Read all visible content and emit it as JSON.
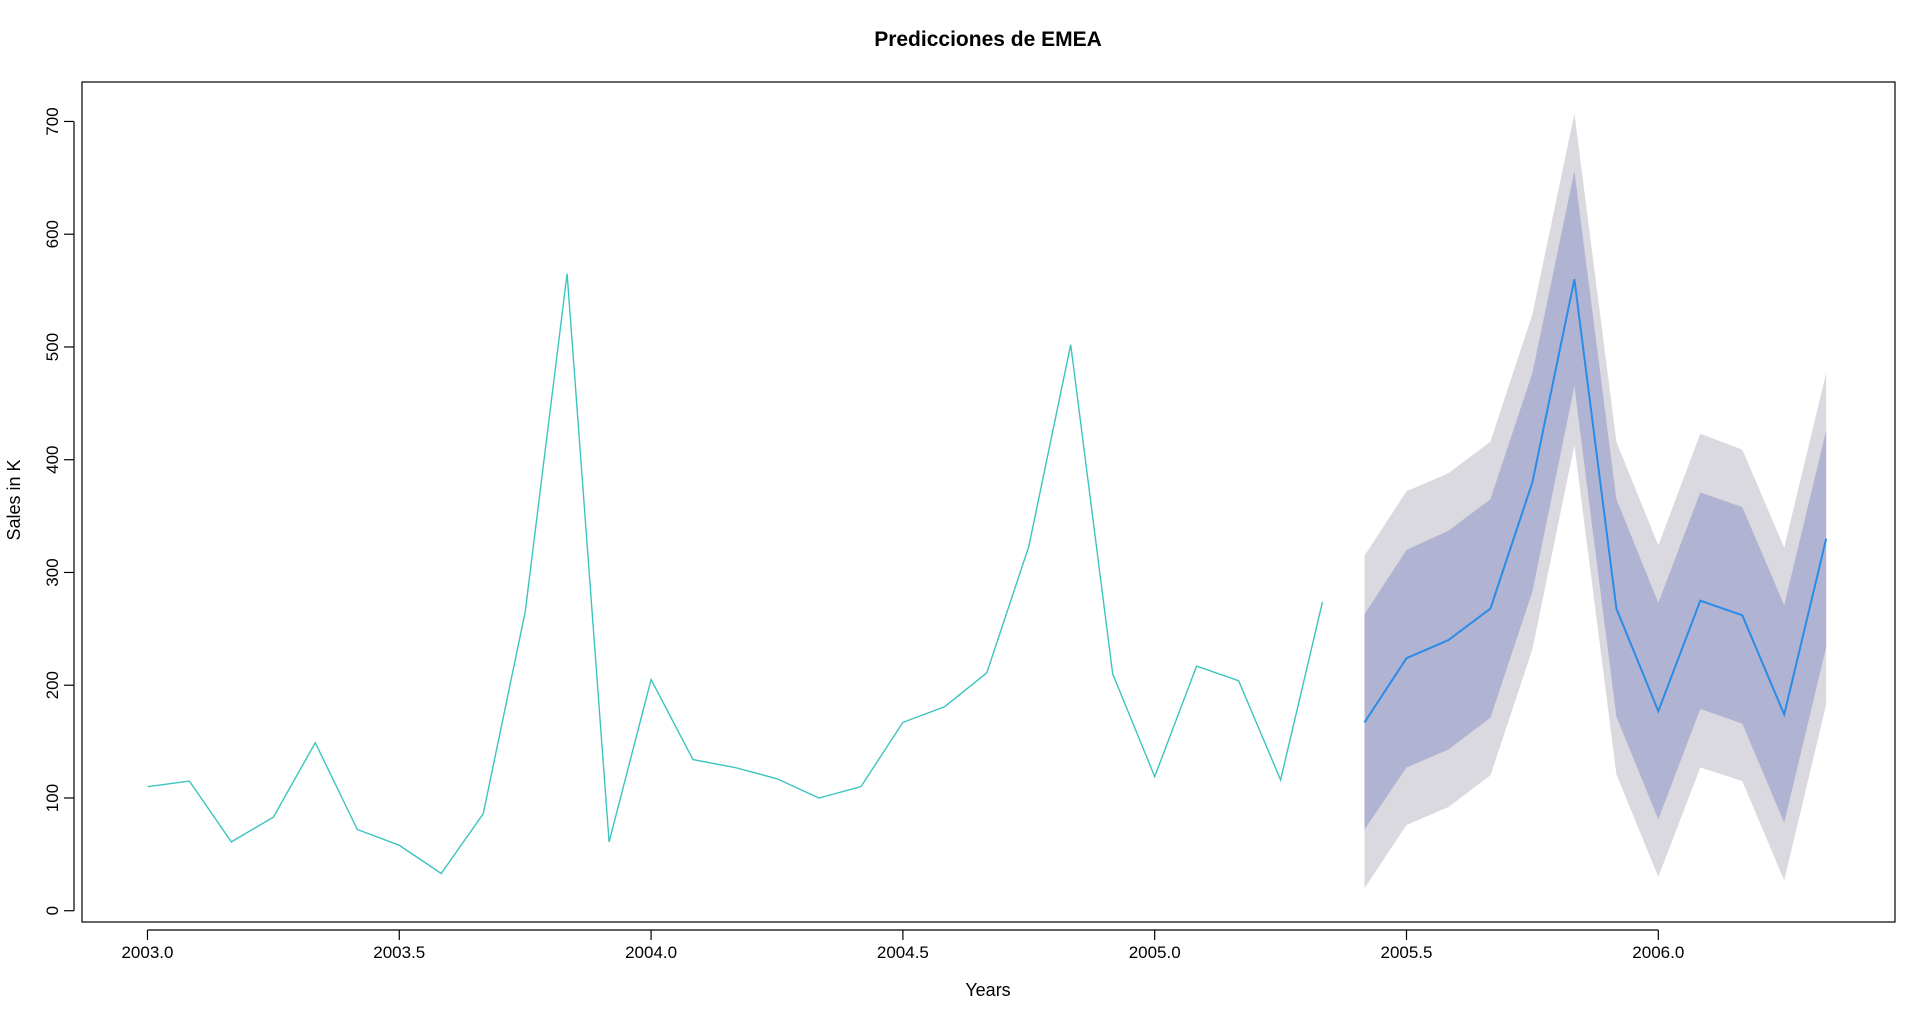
{
  "chart_data": {
    "type": "line",
    "title": "Predicciones de EMEA",
    "xlabel": "Years",
    "ylabel": "Sales in K",
    "xlim": [
      2002.87,
      2006.47
    ],
    "ylim": [
      -10,
      735
    ],
    "x_ticks": [
      2003.0,
      2003.5,
      2004.0,
      2004.5,
      2005.0,
      2005.5,
      2006.0
    ],
    "x_tick_labels": [
      "2003.0",
      "2003.5",
      "2004.0",
      "2004.5",
      "2005.0",
      "2005.5",
      "2006.0"
    ],
    "y_ticks": [
      0,
      100,
      200,
      300,
      400,
      500,
      600,
      700
    ],
    "y_tick_labels": [
      "0",
      "100",
      "200",
      "300",
      "400",
      "500",
      "600",
      "700"
    ],
    "grid": false,
    "colors": {
      "historical": "#3CC4BF",
      "forecast": "#2A8CE6",
      "band_80": "#B0B4D2",
      "band_95": "#D9D9DF"
    },
    "historical": {
      "x": [
        2003.0,
        2003.0833,
        2003.1667,
        2003.25,
        2003.3333,
        2003.4167,
        2003.5,
        2003.5833,
        2003.6667,
        2003.75,
        2003.8333,
        2003.9167,
        2004.0,
        2004.0833,
        2004.1667,
        2004.25,
        2004.3333,
        2004.4167,
        2004.5,
        2004.5833,
        2004.6667,
        2004.75,
        2004.8333,
        2004.9167,
        2005.0,
        2005.0833,
        2005.1667,
        2005.25,
        2005.3333
      ],
      "y": [
        110,
        115,
        61,
        83,
        149,
        72,
        58,
        33,
        86,
        265,
        565,
        61,
        205,
        134,
        127,
        117,
        100,
        110,
        167,
        181,
        211,
        323,
        502,
        210,
        119,
        217,
        204,
        116,
        274
      ]
    },
    "forecast": {
      "x": [
        2005.4167,
        2005.5,
        2005.5833,
        2005.6667,
        2005.75,
        2005.8333,
        2005.9167,
        2006.0,
        2006.0833,
        2006.1667,
        2006.25,
        2006.3333
      ],
      "mean": [
        167,
        224,
        240,
        268,
        380,
        560,
        268,
        177,
        275,
        262,
        174,
        330
      ],
      "lo80": [
        72,
        127,
        143,
        171,
        283,
        465,
        172,
        81,
        179,
        166,
        78,
        234
      ],
      "hi80": [
        263,
        320,
        337,
        365,
        477,
        656,
        365,
        273,
        371,
        358,
        271,
        426
      ],
      "lo95": [
        20,
        76,
        92,
        120,
        232,
        413,
        121,
        30,
        127,
        115,
        27,
        183
      ],
      "hi95": [
        315,
        372,
        388,
        416,
        529,
        707,
        416,
        324,
        423,
        409,
        322,
        477
      ]
    }
  }
}
